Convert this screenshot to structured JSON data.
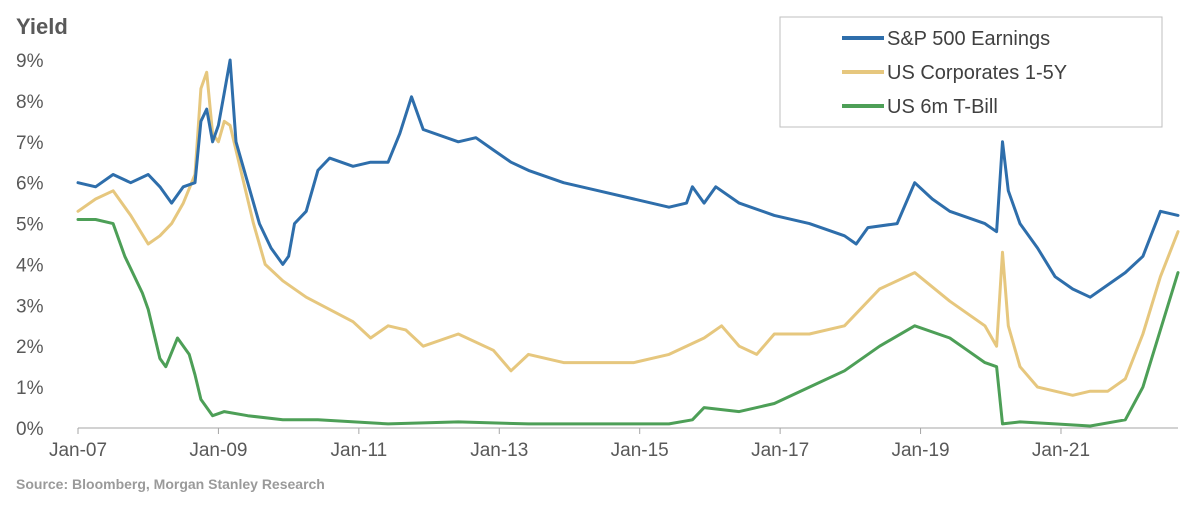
{
  "chart_data": {
    "type": "line",
    "title": "",
    "ylabel": "Yield",
    "xlabel": "",
    "source": "Source: Bloomberg, Morgan Stanley Research",
    "x_range": [
      "2007-01",
      "2022-09"
    ],
    "x_ticks": [
      "Jan-07",
      "Jan-09",
      "Jan-11",
      "Jan-13",
      "Jan-15",
      "Jan-17",
      "Jan-19",
      "Jan-21"
    ],
    "ylim": [
      0,
      9
    ],
    "y_ticks": [
      "0%",
      "1%",
      "2%",
      "3%",
      "4%",
      "5%",
      "6%",
      "7%",
      "8%",
      "9%"
    ],
    "grid": false,
    "legend_position": "top-right",
    "series": [
      {
        "name": "S&P 500 Earnings",
        "color": "#2e6eab",
        "points": [
          [
            "2007-01",
            6.0
          ],
          [
            "2007-04",
            5.9
          ],
          [
            "2007-07",
            6.2
          ],
          [
            "2007-10",
            6.0
          ],
          [
            "2008-01",
            6.2
          ],
          [
            "2008-03",
            5.9
          ],
          [
            "2008-05",
            5.5
          ],
          [
            "2008-07",
            5.9
          ],
          [
            "2008-09",
            6.0
          ],
          [
            "2008-10",
            7.5
          ],
          [
            "2008-11",
            7.8
          ],
          [
            "2008-12",
            7.0
          ],
          [
            "2009-01",
            7.4
          ],
          [
            "2009-02",
            8.2
          ],
          [
            "2009-03",
            9.0
          ],
          [
            "2009-04",
            7.0
          ],
          [
            "2009-06",
            6.0
          ],
          [
            "2009-08",
            5.0
          ],
          [
            "2009-10",
            4.4
          ],
          [
            "2009-12",
            4.0
          ],
          [
            "2010-01",
            4.2
          ],
          [
            "2010-02",
            5.0
          ],
          [
            "2010-04",
            5.3
          ],
          [
            "2010-06",
            6.3
          ],
          [
            "2010-08",
            6.6
          ],
          [
            "2010-12",
            6.4
          ],
          [
            "2011-03",
            6.5
          ],
          [
            "2011-06",
            6.5
          ],
          [
            "2011-08",
            7.2
          ],
          [
            "2011-10",
            8.1
          ],
          [
            "2011-12",
            7.3
          ],
          [
            "2012-06",
            7.0
          ],
          [
            "2012-09",
            7.1
          ],
          [
            "2012-12",
            6.8
          ],
          [
            "2013-03",
            6.5
          ],
          [
            "2013-06",
            6.3
          ],
          [
            "2013-12",
            6.0
          ],
          [
            "2014-06",
            5.8
          ],
          [
            "2014-12",
            5.6
          ],
          [
            "2015-06",
            5.4
          ],
          [
            "2015-09",
            5.5
          ],
          [
            "2015-10",
            5.9
          ],
          [
            "2015-12",
            5.5
          ],
          [
            "2016-02",
            5.9
          ],
          [
            "2016-06",
            5.5
          ],
          [
            "2016-12",
            5.2
          ],
          [
            "2017-06",
            5.0
          ],
          [
            "2017-12",
            4.7
          ],
          [
            "2018-02",
            4.5
          ],
          [
            "2018-04",
            4.9
          ],
          [
            "2018-09",
            5.0
          ],
          [
            "2018-12",
            6.0
          ],
          [
            "2019-03",
            5.6
          ],
          [
            "2019-06",
            5.3
          ],
          [
            "2019-12",
            5.0
          ],
          [
            "2020-02",
            4.8
          ],
          [
            "2020-03",
            7.0
          ],
          [
            "2020-04",
            5.8
          ],
          [
            "2020-06",
            5.0
          ],
          [
            "2020-09",
            4.4
          ],
          [
            "2020-12",
            3.7
          ],
          [
            "2021-03",
            3.4
          ],
          [
            "2021-06",
            3.2
          ],
          [
            "2021-09",
            3.5
          ],
          [
            "2021-12",
            3.8
          ],
          [
            "2022-03",
            4.2
          ],
          [
            "2022-06",
            5.3
          ],
          [
            "2022-09",
            5.2
          ]
        ]
      },
      {
        "name": "US Corporates 1-5Y",
        "color": "#e6c77e",
        "points": [
          [
            "2007-01",
            5.3
          ],
          [
            "2007-04",
            5.6
          ],
          [
            "2007-07",
            5.8
          ],
          [
            "2007-10",
            5.2
          ],
          [
            "2008-01",
            4.5
          ],
          [
            "2008-03",
            4.7
          ],
          [
            "2008-05",
            5.0
          ],
          [
            "2008-07",
            5.5
          ],
          [
            "2008-09",
            6.2
          ],
          [
            "2008-10",
            8.3
          ],
          [
            "2008-11",
            8.7
          ],
          [
            "2008-12",
            7.2
          ],
          [
            "2009-01",
            7.0
          ],
          [
            "2009-02",
            7.5
          ],
          [
            "2009-03",
            7.4
          ],
          [
            "2009-05",
            6.2
          ],
          [
            "2009-07",
            5.0
          ],
          [
            "2009-09",
            4.0
          ],
          [
            "2009-12",
            3.6
          ],
          [
            "2010-04",
            3.2
          ],
          [
            "2010-08",
            2.9
          ],
          [
            "2010-12",
            2.6
          ],
          [
            "2011-03",
            2.2
          ],
          [
            "2011-06",
            2.5
          ],
          [
            "2011-09",
            2.4
          ],
          [
            "2011-12",
            2.0
          ],
          [
            "2012-06",
            2.3
          ],
          [
            "2012-12",
            1.9
          ],
          [
            "2013-03",
            1.4
          ],
          [
            "2013-06",
            1.8
          ],
          [
            "2013-12",
            1.6
          ],
          [
            "2014-06",
            1.6
          ],
          [
            "2014-12",
            1.6
          ],
          [
            "2015-06",
            1.8
          ],
          [
            "2015-12",
            2.2
          ],
          [
            "2016-03",
            2.5
          ],
          [
            "2016-06",
            2.0
          ],
          [
            "2016-09",
            1.8
          ],
          [
            "2016-12",
            2.3
          ],
          [
            "2017-06",
            2.3
          ],
          [
            "2017-12",
            2.5
          ],
          [
            "2018-06",
            3.4
          ],
          [
            "2018-12",
            3.8
          ],
          [
            "2019-06",
            3.1
          ],
          [
            "2019-12",
            2.5
          ],
          [
            "2020-02",
            2.0
          ],
          [
            "2020-03",
            4.3
          ],
          [
            "2020-04",
            2.5
          ],
          [
            "2020-06",
            1.5
          ],
          [
            "2020-09",
            1.0
          ],
          [
            "2020-12",
            0.9
          ],
          [
            "2021-03",
            0.8
          ],
          [
            "2021-06",
            0.9
          ],
          [
            "2021-09",
            0.9
          ],
          [
            "2021-12",
            1.2
          ],
          [
            "2022-03",
            2.3
          ],
          [
            "2022-06",
            3.7
          ],
          [
            "2022-09",
            4.8
          ]
        ]
      },
      {
        "name": "US 6m T-Bill",
        "color": "#4d9f57",
        "points": [
          [
            "2007-01",
            5.1
          ],
          [
            "2007-04",
            5.1
          ],
          [
            "2007-07",
            5.0
          ],
          [
            "2007-09",
            4.2
          ],
          [
            "2007-12",
            3.3
          ],
          [
            "2008-01",
            2.9
          ],
          [
            "2008-03",
            1.7
          ],
          [
            "2008-04",
            1.5
          ],
          [
            "2008-06",
            2.2
          ],
          [
            "2008-08",
            1.8
          ],
          [
            "2008-09",
            1.3
          ],
          [
            "2008-10",
            0.7
          ],
          [
            "2008-12",
            0.3
          ],
          [
            "2009-02",
            0.4
          ],
          [
            "2009-06",
            0.3
          ],
          [
            "2009-12",
            0.2
          ],
          [
            "2010-06",
            0.2
          ],
          [
            "2011-06",
            0.1
          ],
          [
            "2012-06",
            0.15
          ],
          [
            "2013-06",
            0.1
          ],
          [
            "2014-06",
            0.1
          ],
          [
            "2015-06",
            0.1
          ],
          [
            "2015-10",
            0.2
          ],
          [
            "2015-12",
            0.5
          ],
          [
            "2016-06",
            0.4
          ],
          [
            "2016-12",
            0.6
          ],
          [
            "2017-06",
            1.0
          ],
          [
            "2017-12",
            1.4
          ],
          [
            "2018-06",
            2.0
          ],
          [
            "2018-12",
            2.5
          ],
          [
            "2019-06",
            2.2
          ],
          [
            "2019-09",
            1.9
          ],
          [
            "2019-12",
            1.6
          ],
          [
            "2020-02",
            1.5
          ],
          [
            "2020-03",
            0.1
          ],
          [
            "2020-06",
            0.15
          ],
          [
            "2020-12",
            0.1
          ],
          [
            "2021-06",
            0.05
          ],
          [
            "2021-12",
            0.2
          ],
          [
            "2022-03",
            1.0
          ],
          [
            "2022-06",
            2.4
          ],
          [
            "2022-09",
            3.8
          ]
        ]
      }
    ]
  }
}
